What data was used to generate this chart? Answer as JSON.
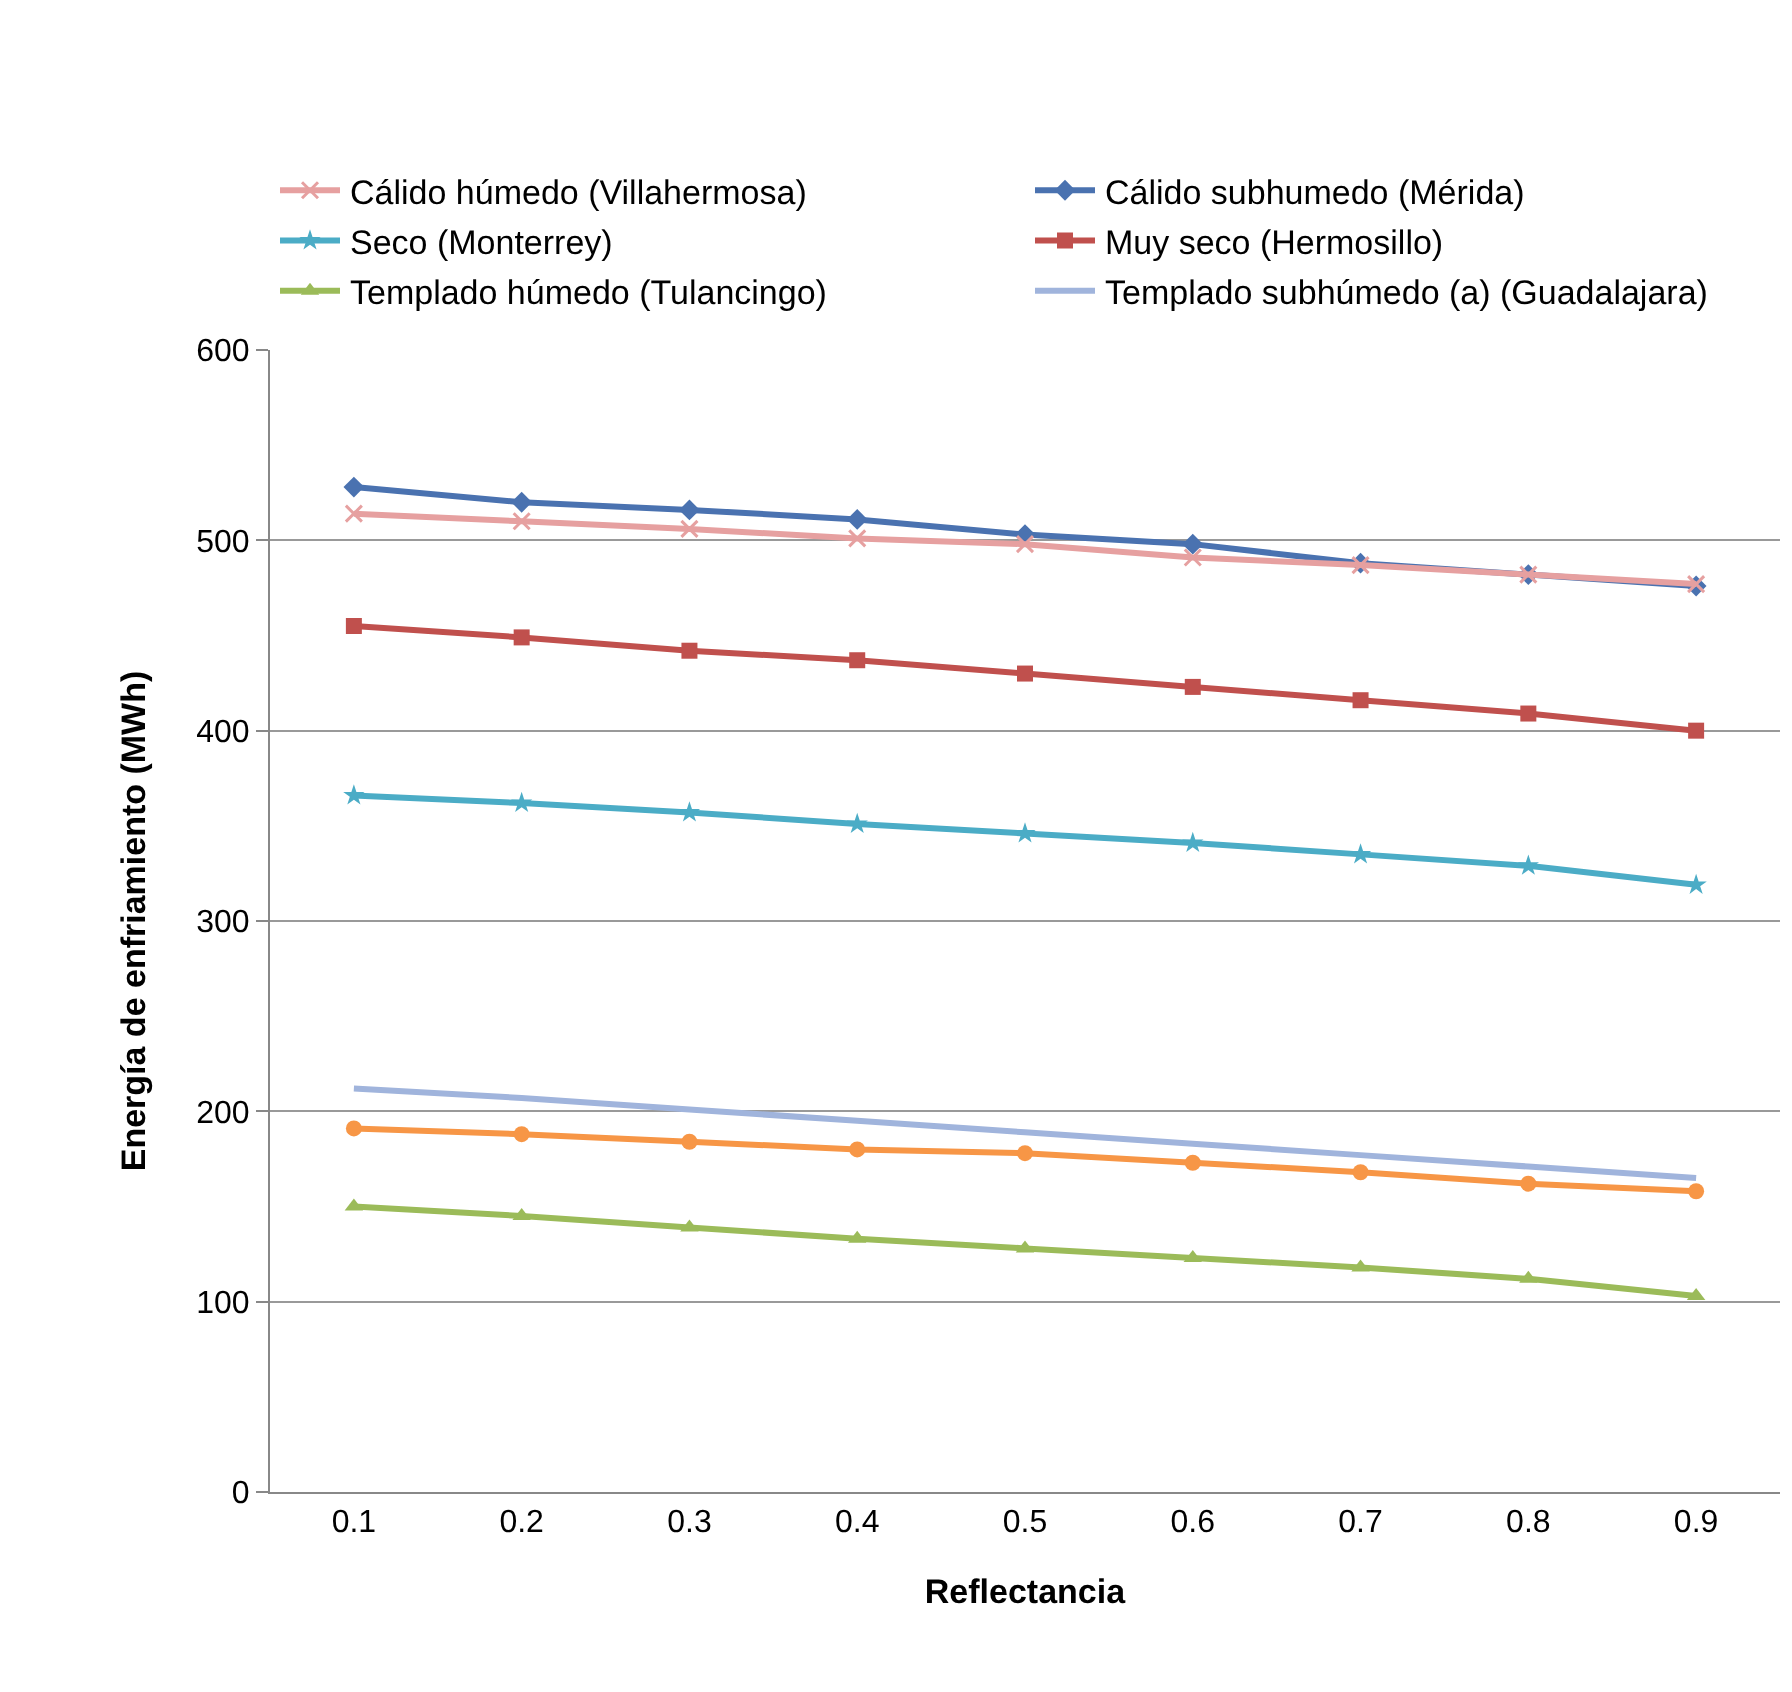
{
  "chart_data": {
    "type": "line",
    "xlabel": "Reflectancia",
    "ylabel": "Energía de enfriamiento (MWh)",
    "categories": [
      "0.1",
      "0.2",
      "0.3",
      "0.4",
      "0.5",
      "0.6",
      "0.7",
      "0.8",
      "0.9"
    ],
    "ylim": [
      0,
      600
    ],
    "yticks": [
      0,
      100,
      200,
      300,
      400,
      500,
      600
    ],
    "grid": "y",
    "legend": "top",
    "series": [
      {
        "name": "Cálido húmedo (Villahermosa)",
        "color": "#e6a0a0",
        "marker": "cross",
        "values": [
          514,
          510,
          506,
          501,
          498,
          491,
          487,
          482,
          477
        ]
      },
      {
        "name": "Cálido subhumedo (Mérida)",
        "color": "#4a72b0",
        "marker": "diamond",
        "values": [
          528,
          520,
          516,
          511,
          503,
          498,
          488,
          482,
          476
        ]
      },
      {
        "name": "Seco (Monterrey)",
        "color": "#4bacc6",
        "marker": "star",
        "values": [
          366,
          362,
          357,
          351,
          346,
          341,
          335,
          329,
          319
        ]
      },
      {
        "name": "Muy seco (Hermosillo)",
        "color": "#c0504d",
        "marker": "square",
        "values": [
          455,
          449,
          442,
          437,
          430,
          423,
          416,
          409,
          400
        ]
      },
      {
        "name": "Templado húmedo (Tulancingo)",
        "color": "#9bbb59",
        "marker": "triangle",
        "values": [
          150,
          145,
          139,
          133,
          128,
          123,
          118,
          112,
          103
        ]
      },
      {
        "name": "Templado subhúmedo (a) (Guadalajara)",
        "color": "#a0b4dc",
        "marker": "none",
        "values": [
          212,
          207,
          201,
          195,
          189,
          183,
          177,
          171,
          165
        ]
      },
      {
        "color": "#f79646",
        "marker": "circle",
        "values": [
          191,
          188,
          184,
          180,
          178,
          173,
          168,
          162,
          158
        ]
      }
    ]
  }
}
